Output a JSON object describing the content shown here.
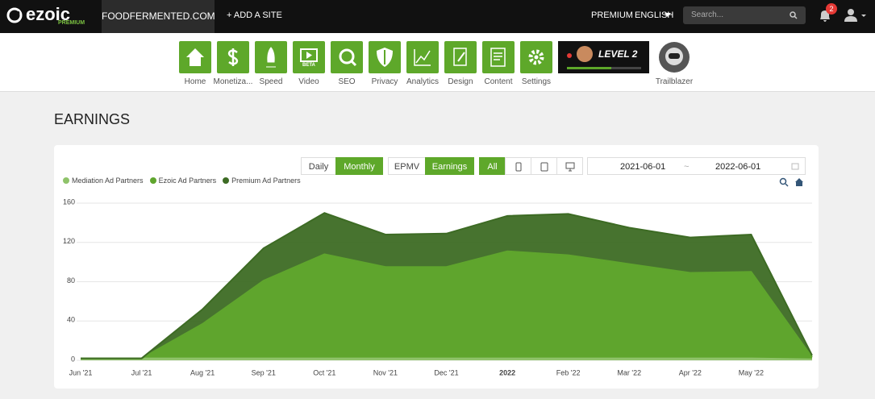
{
  "header": {
    "logo": "ezoic",
    "logo_sub": "PREMIUM",
    "site": "FOODFERMENTED.COM",
    "add_site": "+ ADD A SITE",
    "premium": "PREMIUM",
    "language": "ENGLISH",
    "search_placeholder": "Search...",
    "notifications": "2"
  },
  "nav": {
    "items": [
      {
        "label": "Home"
      },
      {
        "label": "Monetiza..."
      },
      {
        "label": "Speed"
      },
      {
        "label": "Video"
      },
      {
        "label": "SEO"
      },
      {
        "label": "Privacy"
      },
      {
        "label": "Analytics"
      },
      {
        "label": "Design"
      },
      {
        "label": "Content"
      },
      {
        "label": "Settings"
      }
    ],
    "video_badge": "BETA",
    "level": "LEVEL 2",
    "trailblazer": "Trailblazer"
  },
  "page_title": "EARNINGS",
  "controls": {
    "period": [
      "Daily",
      "Monthly"
    ],
    "metric": [
      "EPMV",
      "Earnings"
    ],
    "device": "All",
    "date_from": "2021-06-01",
    "date_sep": "~",
    "date_to": "2022-06-01"
  },
  "chart_data": {
    "type": "area",
    "stacked": true,
    "grid": true,
    "categories": [
      "Jun '21",
      "Jul '21",
      "Aug '21",
      "Sep '21",
      "Oct '21",
      "Nov '21",
      "Dec '21",
      "2022",
      "Feb '22",
      "Mar '22",
      "Apr '22",
      "May '22",
      null
    ],
    "series": [
      {
        "name": "Mediation Ad Partners",
        "color": "#8fc36a",
        "values": [
          2,
          2,
          2,
          2,
          2,
          2,
          2,
          2,
          2,
          2,
          2,
          2,
          1
        ]
      },
      {
        "name": "Ezoic Ad Partners",
        "color": "#5fa52d",
        "values": [
          0,
          0,
          35,
          79,
          106,
          93,
          93,
          109,
          105,
          96,
          87,
          88,
          2
        ]
      },
      {
        "name": "Premium Ad Partners",
        "color": "#3d6b24",
        "values": [
          0,
          0,
          15,
          33,
          42,
          33,
          34,
          36,
          42,
          37,
          36,
          38,
          2
        ]
      }
    ],
    "ylim": [
      0,
      160
    ],
    "yticks": [
      0,
      40,
      80,
      120,
      160
    ]
  }
}
